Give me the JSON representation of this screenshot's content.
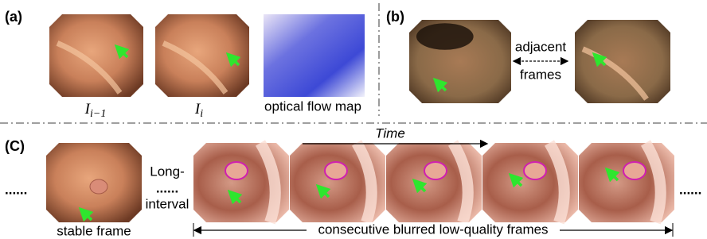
{
  "panel_a": {
    "label": "(a)",
    "frame_prev": {
      "main": "I",
      "sub": "i−1"
    },
    "frame_cur": {
      "main": "I",
      "sub": "i"
    },
    "flow_caption": "optical flow map"
  },
  "panel_b": {
    "label": "(b)",
    "caption_top": "adjacent",
    "caption_bottom": "frames"
  },
  "panel_c": {
    "label": "(C)",
    "ellipsis_left": "......",
    "stable_caption": "stable frame",
    "gap_top": "Long-",
    "gap_dots": "......",
    "gap_bottom": "interval",
    "time_label": "Time",
    "ellipsis_right": "......",
    "sequence_caption": "consecutive blurred low-quality frames"
  }
}
